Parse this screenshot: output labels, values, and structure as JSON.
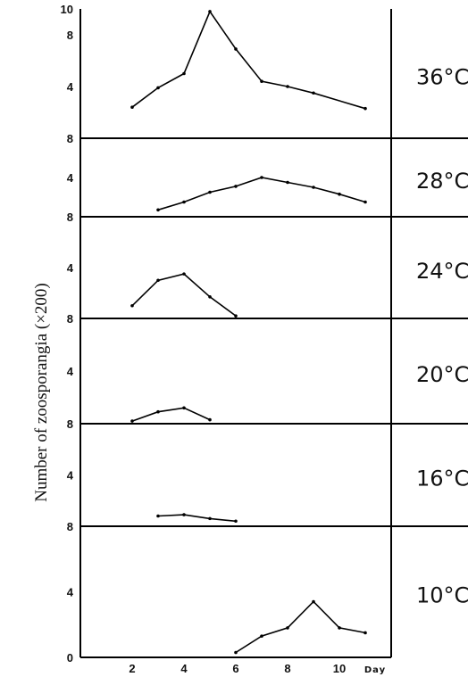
{
  "chart_data": {
    "type": "line",
    "ylabel": "Number of zoosporangia (×200)",
    "x_unit_label": "Day",
    "x_tick_labels": [
      "2",
      "4",
      "6",
      "8",
      "10"
    ],
    "panels": [
      {
        "temperature": "36°C",
        "y_tick_labels": [
          "10",
          "8",
          "4"
        ],
        "ylim": [
          0,
          10
        ],
        "points": [
          [
            2,
            2.4
          ],
          [
            3,
            3.9
          ],
          [
            4,
            5.0
          ],
          [
            5,
            9.8
          ],
          [
            6,
            6.9
          ],
          [
            7,
            4.4
          ],
          [
            8,
            4.0
          ],
          [
            9,
            3.5
          ],
          [
            11,
            2.3
          ]
        ]
      },
      {
        "temperature": "28°C",
        "y_tick_labels": [
          "8",
          "4"
        ],
        "ylim": [
          0,
          8
        ],
        "points": [
          [
            3,
            0.7
          ],
          [
            4,
            1.5
          ],
          [
            5,
            2.5
          ],
          [
            6,
            3.1
          ],
          [
            7,
            4.0
          ],
          [
            8,
            3.5
          ],
          [
            9,
            3.0
          ],
          [
            10,
            2.3
          ],
          [
            11,
            1.5
          ]
        ]
      },
      {
        "temperature": "24°C",
        "y_tick_labels": [
          "8",
          "4"
        ],
        "ylim": [
          0,
          8
        ],
        "points": [
          [
            2,
            1.0
          ],
          [
            3,
            3.0
          ],
          [
            4,
            3.5
          ],
          [
            5,
            1.7
          ],
          [
            6,
            0.2
          ]
        ]
      },
      {
        "temperature": "20°C",
        "y_tick_labels": [
          "8",
          "4"
        ],
        "ylim": [
          0,
          8
        ],
        "points": [
          [
            2,
            0.2
          ],
          [
            3,
            0.9
          ],
          [
            4,
            1.2
          ],
          [
            5,
            0.3
          ]
        ]
      },
      {
        "temperature": "16°C",
        "y_tick_labels": [
          "8",
          "4"
        ],
        "ylim": [
          0,
          8
        ],
        "points": [
          [
            3,
            0.8
          ],
          [
            4,
            0.9
          ],
          [
            5,
            0.6
          ],
          [
            6,
            0.4
          ]
        ]
      },
      {
        "temperature": "10°C",
        "y_tick_labels": [
          "8",
          "4",
          "0"
        ],
        "ylim": [
          0,
          8
        ],
        "points": [
          [
            6,
            0.3
          ],
          [
            7,
            1.3
          ],
          [
            8,
            1.8
          ],
          [
            9,
            3.4
          ],
          [
            10,
            1.8
          ],
          [
            11,
            1.5
          ]
        ]
      }
    ]
  }
}
